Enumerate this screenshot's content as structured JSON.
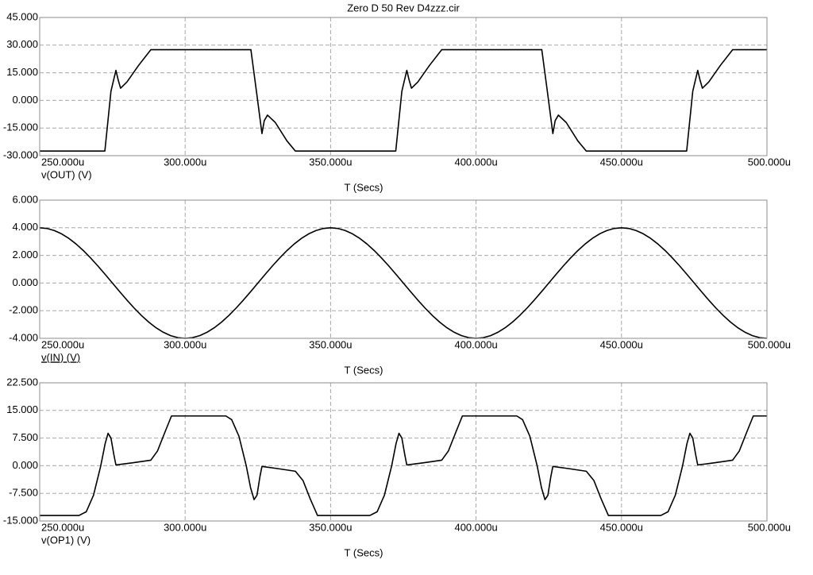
{
  "chart_data": [
    {
      "type": "line",
      "title": "Zero D 50 Rev D4zzz.cir",
      "xlabel": "T (Secs)",
      "grid": true,
      "xlim": [
        250,
        500
      ],
      "xticks": [
        {
          "value": 250,
          "label": "250.000u"
        },
        {
          "value": 300,
          "label": "300.000u"
        },
        {
          "value": 350,
          "label": "350.000u"
        },
        {
          "value": 400,
          "label": "400.000u"
        },
        {
          "value": 450,
          "label": "450.000u"
        },
        {
          "value": 500,
          "label": "500.000u"
        }
      ],
      "ylim": [
        -30,
        45
      ],
      "yticks": [
        {
          "value": 45,
          "label": "45.000"
        },
        {
          "value": 30,
          "label": "30.000"
        },
        {
          "value": 15,
          "label": "15.000"
        },
        {
          "value": 0,
          "label": "0.000"
        },
        {
          "value": -15,
          "label": "-15.000"
        },
        {
          "value": -30,
          "label": "-30.000"
        }
      ],
      "x": [
        250,
        272.4,
        274.5,
        276.2,
        277,
        277.8,
        280,
        284,
        288.2,
        322.6,
        324.5,
        326.4,
        327.2,
        328.3,
        331,
        335,
        337.9,
        372.4,
        374.5,
        376.2,
        377,
        377.8,
        380,
        384,
        388.2,
        422.6,
        424.5,
        426.4,
        427.2,
        428.3,
        431,
        435,
        437.9,
        472.4,
        474.5,
        476.2,
        477,
        477.8,
        480,
        484,
        488.2,
        500
      ],
      "series": [
        {
          "name": "v(OUT) (V)",
          "color": "#000000",
          "values": [
            -27.5,
            -27.5,
            5,
            16.3,
            11,
            6.6,
            10,
            19,
            27.5,
            27.5,
            5,
            -18,
            -11,
            -8,
            -12,
            -22,
            -27.5,
            -27.5,
            5,
            16.3,
            11,
            6.6,
            10,
            19,
            27.5,
            27.5,
            5,
            -18,
            -11,
            -8,
            -12,
            -22,
            -27.5,
            -27.5,
            5,
            16.3,
            11,
            6.6,
            10,
            19,
            27.5,
            27.5
          ]
        }
      ]
    },
    {
      "type": "line",
      "xlabel": "T (Secs)",
      "grid": true,
      "xlim": [
        250,
        500
      ],
      "xticks": [
        {
          "value": 250,
          "label": "250.000u"
        },
        {
          "value": 300,
          "label": "300.000u"
        },
        {
          "value": 350,
          "label": "350.000u"
        },
        {
          "value": 400,
          "label": "400.000u"
        },
        {
          "value": 450,
          "label": "450.000u"
        },
        {
          "value": 500,
          "label": "500.000u"
        }
      ],
      "ylim": [
        -4,
        6
      ],
      "yticks": [
        {
          "value": 6,
          "label": "6.000"
        },
        {
          "value": 4,
          "label": "4.000"
        },
        {
          "value": 2,
          "label": "2.000"
        },
        {
          "value": 0,
          "label": "0.000"
        },
        {
          "value": -2,
          "label": "-2.000"
        },
        {
          "value": -4,
          "label": "-4.000"
        }
      ],
      "x": [
        250,
        252.5,
        255,
        257.5,
        260,
        262.5,
        265,
        267.5,
        270,
        272.5,
        275,
        277.5,
        280,
        282.5,
        285,
        287.5,
        290,
        292.5,
        295,
        297.5,
        300,
        302.5,
        305,
        307.5,
        310,
        312.5,
        315,
        317.5,
        320,
        322.5,
        325,
        327.5,
        330,
        332.5,
        335,
        337.5,
        340,
        342.5,
        345,
        347.5,
        350,
        352.5,
        355,
        357.5,
        360,
        362.5,
        365,
        367.5,
        370,
        372.5,
        375,
        377.5,
        380,
        382.5,
        385,
        387.5,
        390,
        392.5,
        395,
        397.5,
        400,
        402.5,
        405,
        407.5,
        410,
        412.5,
        415,
        417.5,
        420,
        422.5,
        425,
        427.5,
        430,
        432.5,
        435,
        437.5,
        440,
        442.5,
        445,
        447.5,
        450,
        452.5,
        455,
        457.5,
        460,
        462.5,
        465,
        467.5,
        470,
        472.5,
        475,
        477.5,
        480,
        482.5,
        485,
        487.5,
        490,
        492.5,
        495,
        497.5,
        500
      ],
      "series": [
        {
          "name": "v(IN) (V)",
          "color": "#000000",
          "values": [
            4,
            3.951,
            3.804,
            3.564,
            3.236,
            2.828,
            2.351,
            1.816,
            1.236,
            0.626,
            0,
            -0.626,
            -1.236,
            -1.816,
            -2.351,
            -2.828,
            -3.236,
            -3.564,
            -3.804,
            -3.951,
            -4,
            -3.951,
            -3.804,
            -3.564,
            -3.236,
            -2.828,
            -2.351,
            -1.816,
            -1.236,
            -0.626,
            0,
            0.626,
            1.236,
            1.816,
            2.351,
            2.828,
            3.236,
            3.564,
            3.804,
            3.951,
            4,
            3.951,
            3.804,
            3.564,
            3.236,
            2.828,
            2.351,
            1.816,
            1.236,
            0.626,
            0,
            -0.626,
            -1.236,
            -1.816,
            -2.351,
            -2.828,
            -3.236,
            -3.564,
            -3.804,
            -3.951,
            -4,
            -3.951,
            -3.804,
            -3.564,
            -3.236,
            -2.828,
            -2.351,
            -1.816,
            -1.236,
            -0.626,
            0,
            0.626,
            1.236,
            1.816,
            2.351,
            2.828,
            3.236,
            3.564,
            3.804,
            3.951,
            4,
            3.951,
            3.804,
            3.564,
            3.236,
            2.828,
            2.351,
            1.816,
            1.236,
            0.626,
            0,
            -0.626,
            -1.236,
            -1.816,
            -2.351,
            -2.828,
            -3.236,
            -3.564,
            -3.804,
            -3.951,
            -4
          ]
        }
      ]
    },
    {
      "type": "line",
      "xlabel": "T (Secs)",
      "grid": true,
      "xlim": [
        250,
        500
      ],
      "xticks": [
        {
          "value": 250,
          "label": "250.000u"
        },
        {
          "value": 300,
          "label": "300.000u"
        },
        {
          "value": 350,
          "label": "350.000u"
        },
        {
          "value": 400,
          "label": "400.000u"
        },
        {
          "value": 450,
          "label": "450.000u"
        },
        {
          "value": 500,
          "label": "500.000u"
        }
      ],
      "ylim": [
        -15,
        22.5
      ],
      "yticks": [
        {
          "value": 22.5,
          "label": "22.500"
        },
        {
          "value": 15,
          "label": "15.000"
        },
        {
          "value": 7.5,
          "label": "7.500"
        },
        {
          "value": 0,
          "label": "0.000"
        },
        {
          "value": -7.5,
          "label": "-7.500"
        },
        {
          "value": -15,
          "label": "-15.000"
        }
      ],
      "x": [
        250,
        263.5,
        266,
        268.5,
        271,
        272.5,
        273.5,
        274.5,
        275.5,
        276.2,
        282,
        288.2,
        290.5,
        293,
        295.3,
        314,
        316,
        318.5,
        321,
        322.5,
        323.7,
        324.7,
        325.7,
        326.4,
        332,
        337.9,
        340.5,
        343,
        345.5,
        363.5,
        366,
        368.5,
        371,
        372.5,
        373.5,
        374.5,
        375.5,
        376.2,
        382,
        388.2,
        390.5,
        393,
        395.3,
        414,
        416,
        418.5,
        421,
        422.5,
        423.7,
        424.7,
        425.7,
        426.4,
        432,
        437.9,
        440.5,
        443,
        445.5,
        463.5,
        466,
        468.5,
        471,
        472.5,
        473.5,
        474.5,
        475.5,
        476.2,
        482,
        488.2,
        490.5,
        493,
        495.3,
        500
      ],
      "series": [
        {
          "name": "v(OP1) (V)",
          "color": "#000000",
          "values": [
            -13.5,
            -13.5,
            -12.5,
            -8,
            0,
            6,
            8.8,
            7.5,
            3,
            0.2,
            0.8,
            1.5,
            4,
            9,
            13.5,
            13.5,
            12.5,
            8,
            0,
            -6,
            -9.2,
            -8,
            -3,
            -0.2,
            -0.8,
            -1.5,
            -4,
            -9,
            -13.5,
            -13.5,
            -12.5,
            -8,
            0,
            6,
            8.8,
            7.5,
            3,
            0.2,
            0.8,
            1.5,
            4,
            9,
            13.5,
            13.5,
            12.5,
            8,
            0,
            -6,
            -9.2,
            -8,
            -3,
            -0.2,
            -0.8,
            -1.5,
            -4,
            -9,
            -13.5,
            -13.5,
            -12.5,
            -8,
            0,
            6,
            8.8,
            7.5,
            3,
            0.2,
            0.8,
            1.5,
            4,
            9,
            13.5,
            13.5
          ]
        }
      ]
    }
  ]
}
